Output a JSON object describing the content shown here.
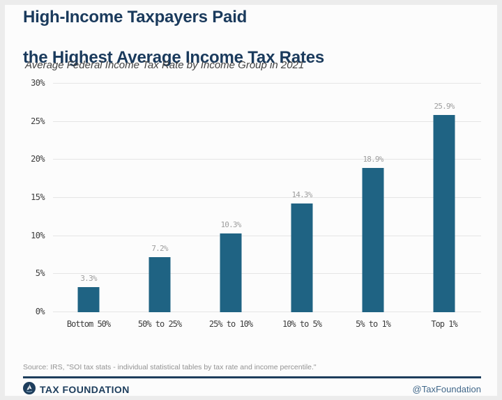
{
  "header": {
    "title_line1": "High-Income Taxpayers Paid",
    "title_line2": "the Highest Average Income Tax Rates",
    "subtitle": "Average Federal Income Tax Rate by Income Group in 2021"
  },
  "chart_data": {
    "type": "bar",
    "title": "High-Income Taxpayers Paid the Highest Average Income Tax Rates",
    "subtitle": "Average Federal Income Tax Rate by Income Group in 2021",
    "categories": [
      "Bottom 50%",
      "50% to 25%",
      "25% to 10%",
      "10% to 5%",
      "5% to 1%",
      "Top 1%"
    ],
    "values": [
      3.3,
      7.2,
      10.3,
      14.3,
      18.9,
      25.9
    ],
    "value_labels": [
      "3.3%",
      "7.2%",
      "10.3%",
      "14.3%",
      "18.9%",
      "25.9%"
    ],
    "xlabel": "",
    "ylabel": "",
    "ylim": [
      0,
      30
    ],
    "ytick_step": 5,
    "ytick_labels": [
      "0%",
      "5%",
      "10%",
      "15%",
      "20%",
      "25%",
      "30%"
    ],
    "grid": true,
    "legend": "none",
    "bar_color": "#1f6383",
    "gridline_color": "#e5e5e5",
    "value_label_color": "#9e9e9e"
  },
  "source": {
    "text": "Source: IRS, \"SOI tax stats - individual statistical tables by tax rate and income percentile.\""
  },
  "footer": {
    "brand": "TAX FOUNDATION",
    "handle": "@TaxFoundation",
    "accent_color": "#1d3d5c"
  }
}
